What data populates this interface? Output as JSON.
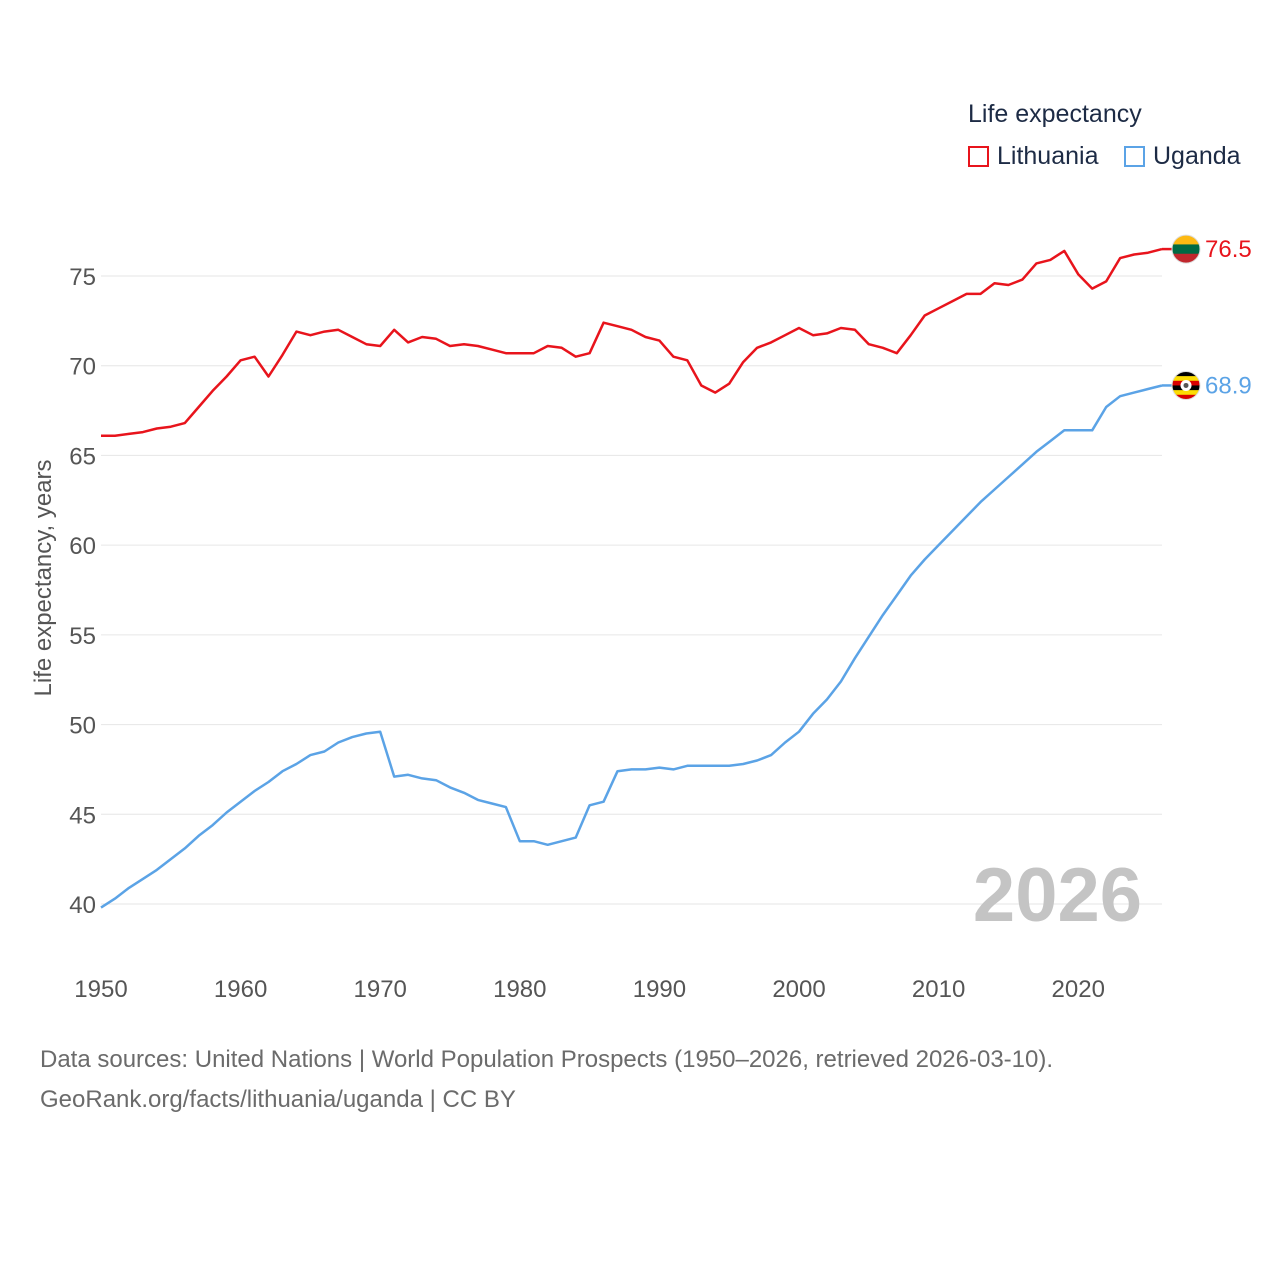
{
  "legend": {
    "title": "Life expectancy",
    "items": [
      {
        "label": "Lithuania",
        "color": "#e8141c"
      },
      {
        "label": "Uganda",
        "color": "#5ba3e6"
      }
    ]
  },
  "watermark_year": "2026",
  "footer": {
    "line1": "Data sources: United Nations | World Population Prospects (1950–2026, retrieved 2026-03-10).",
    "line2": "GeoRank.org/facts/lithuania/uganda | CC BY"
  },
  "chart_data": {
    "type": "line",
    "ylabel": "Life expectancy, years",
    "xlabel": "",
    "xlim": [
      1950,
      2026
    ],
    "ylim": [
      38,
      78
    ],
    "x_ticks": [
      1950,
      1960,
      1970,
      1980,
      1990,
      2000,
      2010,
      2020
    ],
    "y_ticks": [
      40,
      45,
      50,
      55,
      60,
      65,
      70,
      75
    ],
    "x": [
      1950,
      1951,
      1952,
      1953,
      1954,
      1955,
      1956,
      1957,
      1958,
      1959,
      1960,
      1961,
      1962,
      1963,
      1964,
      1965,
      1966,
      1967,
      1968,
      1969,
      1970,
      1971,
      1972,
      1973,
      1974,
      1975,
      1976,
      1977,
      1978,
      1979,
      1980,
      1981,
      1982,
      1983,
      1984,
      1985,
      1986,
      1987,
      1988,
      1989,
      1990,
      1991,
      1992,
      1993,
      1994,
      1995,
      1996,
      1997,
      1998,
      1999,
      2000,
      2001,
      2002,
      2003,
      2004,
      2005,
      2006,
      2007,
      2008,
      2009,
      2010,
      2011,
      2012,
      2013,
      2014,
      2015,
      2016,
      2017,
      2018,
      2019,
      2020,
      2021,
      2022,
      2023,
      2024,
      2025,
      2026
    ],
    "series": [
      {
        "name": "Lithuania",
        "color": "#e8141c",
        "end_label": "76.5",
        "flag": "lithuania-flag",
        "values": [
          66.1,
          66.1,
          66.2,
          66.3,
          66.5,
          66.6,
          66.8,
          67.7,
          68.6,
          69.4,
          70.3,
          70.5,
          69.4,
          70.6,
          71.9,
          71.7,
          71.9,
          72.0,
          71.6,
          71.2,
          71.1,
          72.0,
          71.3,
          71.6,
          71.5,
          71.1,
          71.2,
          71.1,
          70.9,
          70.7,
          70.7,
          70.7,
          71.1,
          71.0,
          70.5,
          70.7,
          72.4,
          72.2,
          72.0,
          71.6,
          71.4,
          70.5,
          70.3,
          68.9,
          68.5,
          69.0,
          70.2,
          71.0,
          71.3,
          71.7,
          72.1,
          71.7,
          71.8,
          72.1,
          72.0,
          71.2,
          71.0,
          70.7,
          71.7,
          72.8,
          73.2,
          73.6,
          74.0,
          74.0,
          74.6,
          74.5,
          74.8,
          75.7,
          75.9,
          76.4,
          75.1,
          74.3,
          74.7,
          76.0,
          76.2,
          76.3,
          76.5
        ]
      },
      {
        "name": "Uganda",
        "color": "#5ba3e6",
        "end_label": "68.9",
        "flag": "uganda-flag",
        "values": [
          39.8,
          40.3,
          40.9,
          41.4,
          41.9,
          42.5,
          43.1,
          43.8,
          44.4,
          45.1,
          45.7,
          46.3,
          46.8,
          47.4,
          47.8,
          48.3,
          48.5,
          49.0,
          49.3,
          49.5,
          49.6,
          47.1,
          47.2,
          47.0,
          46.9,
          46.5,
          46.2,
          45.8,
          45.6,
          45.4,
          43.5,
          43.5,
          43.3,
          43.5,
          43.7,
          45.5,
          45.7,
          47.4,
          47.5,
          47.5,
          47.6,
          47.5,
          47.7,
          47.7,
          47.7,
          47.7,
          47.8,
          48.0,
          48.3,
          49.0,
          49.6,
          50.6,
          51.4,
          52.4,
          53.7,
          54.9,
          56.1,
          57.2,
          58.3,
          59.2,
          60.0,
          60.8,
          61.6,
          62.4,
          63.1,
          63.8,
          64.5,
          65.2,
          65.8,
          66.4,
          66.4,
          66.4,
          67.7,
          68.3,
          68.5,
          68.7,
          68.9
        ]
      }
    ]
  }
}
